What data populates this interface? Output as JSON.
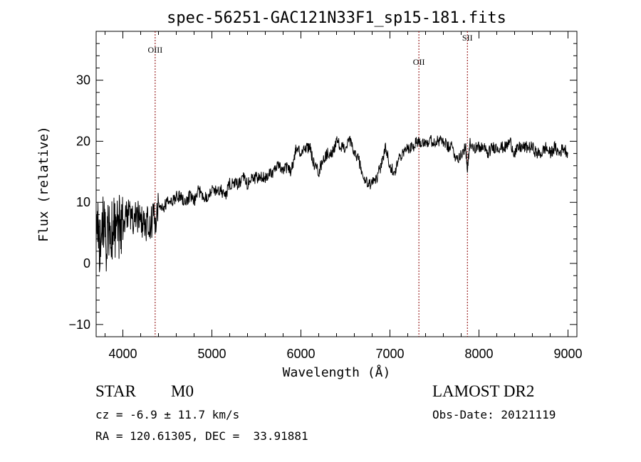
{
  "chart_data": {
    "type": "line",
    "title": "spec-56251-GAC121N33F1_sp15-181.fits",
    "xlabel": "Wavelength (Å)",
    "ylabel": "Flux (relative)",
    "xlim": [
      3700,
      9100
    ],
    "ylim": [
      -12,
      38
    ],
    "xticks": [
      4000,
      5000,
      6000,
      7000,
      8000,
      9000
    ],
    "yticks": [
      -10,
      0,
      10,
      20,
      30
    ],
    "line_color": "#000000",
    "marker_color": "#8b0000",
    "grid": false,
    "series": [
      {
        "x": [
          3700,
          3740,
          3780,
          3820,
          3860,
          3900,
          3940,
          3980,
          4020,
          4060,
          4100,
          4150,
          4200,
          4250,
          4300,
          4350,
          4400,
          4450,
          4500,
          4550,
          4600,
          4650,
          4700,
          4750,
          4800,
          4850,
          4900,
          4950,
          5000,
          5050,
          5100,
          5150,
          5200,
          5250,
          5300,
          5350,
          5400,
          5450,
          5500,
          5550,
          5600,
          5650,
          5700,
          5750,
          5800,
          5850,
          5890,
          5920,
          5950,
          6000,
          6050,
          6100,
          6150,
          6200,
          6250,
          6300,
          6350,
          6400,
          6450,
          6500,
          6550,
          6600,
          6650,
          6700,
          6750,
          6800,
          6850,
          6900,
          6950,
          7000,
          7050,
          7100,
          7150,
          7200,
          7250,
          7300,
          7350,
          7400,
          7450,
          7500,
          7550,
          7600,
          7650,
          7700,
          7750,
          7800,
          7850,
          7870,
          7900,
          7950,
          8000,
          8050,
          8100,
          8150,
          8200,
          8250,
          8300,
          8350,
          8400,
          8450,
          8500,
          8550,
          8600,
          8650,
          8700,
          8750,
          8800,
          8850,
          8900,
          8950,
          9000
        ],
        "y": [
          5,
          4,
          6,
          4,
          5,
          7,
          6,
          6,
          7,
          8,
          7,
          8,
          7,
          6,
          7,
          7,
          9,
          9,
          10,
          10,
          11,
          11,
          10,
          11,
          10,
          12,
          11,
          11,
          12,
          12,
          12,
          11,
          13,
          13,
          13,
          14,
          13,
          14,
          14,
          14,
          14,
          15,
          15,
          16,
          15,
          16,
          15,
          17,
          19,
          18,
          19,
          19,
          16,
          15,
          17,
          18,
          18,
          20,
          19,
          19,
          20,
          18,
          17,
          14,
          13,
          13,
          14,
          16,
          19,
          16,
          15,
          17,
          18,
          19,
          19,
          20,
          20,
          20,
          20,
          20,
          20,
          20,
          19,
          19,
          17,
          18,
          19,
          15,
          20,
          19,
          19,
          19,
          18,
          19,
          19,
          19,
          19,
          20,
          18,
          19,
          19,
          19,
          19,
          18,
          18,
          19,
          18,
          19,
          18,
          19,
          18
        ]
      }
    ],
    "annotations": [
      {
        "label": "OIII",
        "x": 4363,
        "label_y": 34.5
      },
      {
        "label": "OII",
        "x": 7325,
        "label_y": 32.5
      },
      {
        "label": "SII",
        "x": 7870,
        "label_y": 36.5
      }
    ]
  },
  "info": {
    "class_label": "STAR",
    "subclass_label": "M0",
    "survey_label": "LAMOST DR2",
    "cz_text": "cz = -6.9 ± 11.7 km/s",
    "obs_date_text": "Obs-Date: 20121119",
    "radec_text": "RA = 120.61305, DEC =  33.91881"
  }
}
